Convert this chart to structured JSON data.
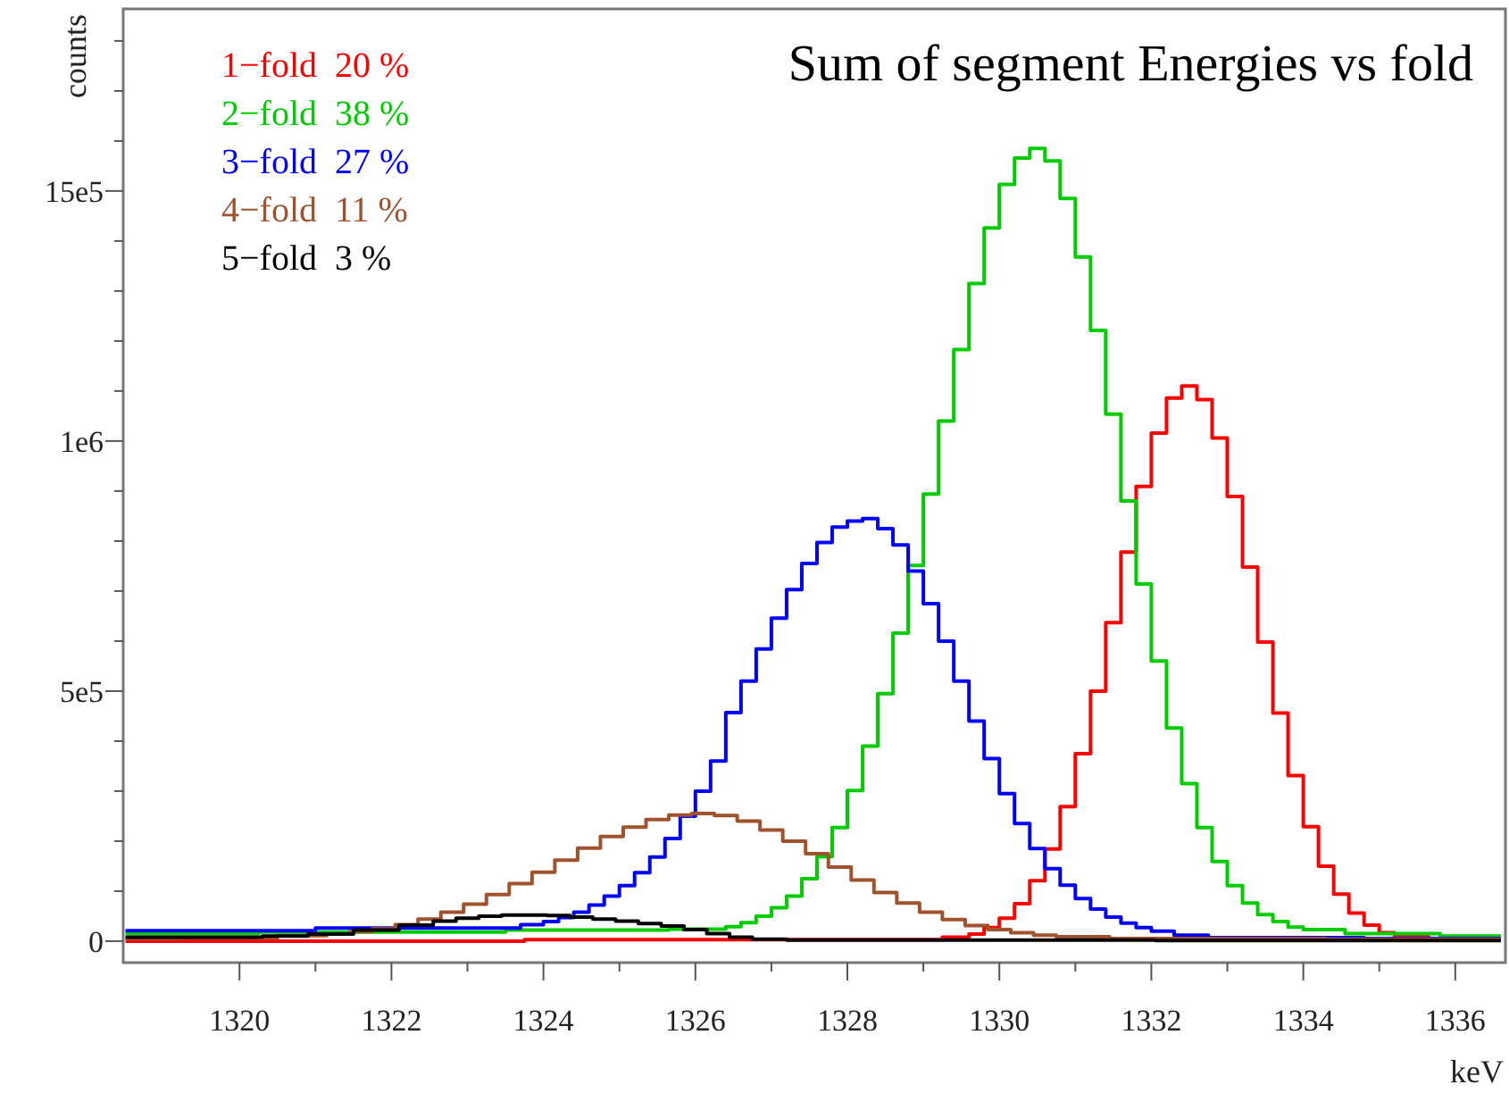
{
  "chart_data": {
    "type": "step",
    "title": "Sum of segment Energies vs fold",
    "xlabel": "keV",
    "ylabel": "counts",
    "xlim": [
      1318.47,
      1336.66
    ],
    "ylim": [
      -43000,
      1864000
    ],
    "xticks": [
      1320,
      {
        "value": 1321,
        "label": null
      },
      1322,
      {
        "value": 1323,
        "label": null
      },
      1324,
      {
        "value": 1325,
        "label": null
      },
      1326,
      {
        "value": 1327,
        "label": null
      },
      1328,
      {
        "value": 1329,
        "label": null
      },
      1330,
      {
        "value": 1331,
        "label": null
      },
      1332,
      {
        "value": 1333,
        "label": null
      },
      1334,
      {
        "value": 1335,
        "label": null
      },
      1336
    ],
    "yticks": [
      0,
      {
        "value": 100000,
        "label": null
      },
      {
        "value": 200000,
        "label": null
      },
      {
        "value": 300000,
        "label": null
      },
      {
        "value": 400000,
        "label": null
      },
      {
        "value": 500000,
        "label": "5e5"
      },
      {
        "value": 600000,
        "label": null
      },
      {
        "value": 700000,
        "label": null
      },
      {
        "value": 800000,
        "label": null
      },
      {
        "value": 900000,
        "label": null
      },
      {
        "value": 1000000,
        "label": "1e6"
      },
      {
        "value": 1100000,
        "label": null
      },
      {
        "value": 1200000,
        "label": null
      },
      {
        "value": 1300000,
        "label": null
      },
      {
        "value": 1400000,
        "label": null
      },
      {
        "value": 1500000,
        "label": "15e5"
      },
      {
        "value": 1600000,
        "label": null
      },
      {
        "value": 1700000,
        "label": null
      },
      {
        "value": 1800000,
        "label": null
      }
    ],
    "grid": false,
    "legend": "top left",
    "marker": "none",
    "line_style": "solid",
    "series": [
      {
        "name": "1−fold  20 %",
        "color": "#ff0000",
        "x": [
          1318.5,
          1329,
          1329.5,
          1329.7,
          1329.9,
          1330.1,
          1330.3,
          1330.5,
          1330.7,
          1330.9,
          1331.1,
          1331.3,
          1331.5,
          1331.7,
          1331.9,
          1332.1,
          1332.3,
          1332.5,
          1332.7,
          1332.9,
          1333.1,
          1333.3,
          1333.5,
          1333.7,
          1333.9,
          1334.1,
          1334.3,
          1334.5,
          1334.7,
          1334.9,
          1335.1,
          1335.3,
          1336,
          1336.6
        ],
        "values": [
          0,
          3000,
          8000,
          14000,
          27000,
          46000,
          75000,
          121000,
          184000,
          269000,
          375000,
          500000,
          637000,
          778000,
          909000,
          1016000,
          1086000,
          1110000,
          1083000,
          1006000,
          889000,
          748000,
          598000,
          456000,
          331000,
          229000,
          150000,
          94000,
          56000,
          32000,
          17000,
          9000,
          3000,
          3000
        ]
      },
      {
        "name": "2−fold  38 %",
        "color": "#00cc00",
        "x": [
          1318.5,
          1322,
          1325,
          1326.3,
          1326.5,
          1326.7,
          1326.9,
          1327.1,
          1327.3,
          1327.5,
          1327.7,
          1327.9,
          1328.1,
          1328.3,
          1328.5,
          1328.7,
          1328.9,
          1329.1,
          1329.3,
          1329.5,
          1329.7,
          1329.9,
          1330.1,
          1330.3,
          1330.5,
          1330.7,
          1330.9,
          1331.1,
          1331.3,
          1331.5,
          1331.7,
          1331.9,
          1332.1,
          1332.3,
          1332.5,
          1332.7,
          1332.9,
          1333.1,
          1333.3,
          1333.5,
          1333.7,
          1333.9,
          1334.1,
          1335,
          1336.6
        ],
        "values": [
          15000,
          18000,
          22000,
          24000,
          29000,
          37000,
          50000,
          67000,
          90000,
          125000,
          169000,
          227000,
          301000,
          390000,
          495000,
          616000,
          751000,
          894000,
          1040000,
          1183000,
          1315000,
          1426000,
          1513000,
          1566000,
          1585000,
          1560000,
          1485000,
          1368000,
          1221000,
          1054000,
          880000,
          714000,
          560000,
          426000,
          315000,
          227000,
          159000,
          111000,
          76000,
          53000,
          39000,
          28000,
          23000,
          15000,
          10000
        ]
      },
      {
        "name": "3−fold  27 %",
        "color": "#0000ff",
        "x": [
          1318.5,
          1323.5,
          1323.9,
          1324.1,
          1324.3,
          1324.5,
          1324.7,
          1324.9,
          1325.1,
          1325.3,
          1325.5,
          1325.7,
          1325.9,
          1326.1,
          1326.3,
          1326.5,
          1326.7,
          1326.9,
          1327.1,
          1327.3,
          1327.5,
          1327.7,
          1327.9,
          1328.1,
          1328.3,
          1328.5,
          1328.7,
          1328.9,
          1329.1,
          1329.3,
          1329.5,
          1329.7,
          1329.9,
          1330.1,
          1330.3,
          1330.5,
          1330.7,
          1330.9,
          1331.1,
          1331.3,
          1331.5,
          1331.7,
          1331.9,
          1332.1,
          1332.5,
          1333,
          1336.6
        ],
        "values": [
          21000,
          26000,
          33000,
          39000,
          47000,
          58000,
          72000,
          90000,
          111000,
          137000,
          168000,
          205000,
          250000,
          300000,
          360000,
          457000,
          520000,
          584000,
          646000,
          703000,
          755000,
          797000,
          828000,
          840000,
          845000,
          825000,
          792000,
          740000,
          675000,
          600000,
          520000,
          440000,
          365000,
          295000,
          235000,
          185000,
          145000,
          112000,
          85000,
          64000,
          48000,
          36000,
          27000,
          20000,
          12000,
          7000,
          5000
        ]
      },
      {
        "name": "4−fold  11 %",
        "color": "#a0522d",
        "x": [
          1318.5,
          1320,
          1321,
          1321.3,
          1321.6,
          1321.9,
          1322.2,
          1322.5,
          1322.8,
          1323.1,
          1323.4,
          1323.7,
          1324,
          1324.3,
          1324.6,
          1324.9,
          1325.2,
          1325.5,
          1325.8,
          1326.1,
          1326.4,
          1326.7,
          1327,
          1327.3,
          1327.6,
          1327.9,
          1328.2,
          1328.5,
          1328.8,
          1329.1,
          1329.4,
          1329.7,
          1330,
          1330.3,
          1330.6,
          1330.9,
          1332,
          1336.6
        ],
        "values": [
          5000,
          6000,
          11000,
          14000,
          19000,
          25000,
          33000,
          44000,
          58000,
          74000,
          93000,
          115000,
          138000,
          162000,
          186000,
          209000,
          228000,
          243000,
          252000,
          255000,
          251000,
          240000,
          222000,
          200000,
          175000,
          148000,
          122000,
          97000,
          76000,
          58000,
          43000,
          31000,
          23000,
          17000,
          12000,
          9000,
          5000,
          4000
        ]
      },
      {
        "name": "5−fold  3 %",
        "color": "#000000",
        "x": [
          1318.5,
          1320,
          1320.6,
          1321.2,
          1321.8,
          1322.4,
          1322.7,
          1323,
          1323.3,
          1323.6,
          1323.9,
          1324.2,
          1324.5,
          1324.8,
          1325.1,
          1325.4,
          1325.7,
          1326,
          1326.3,
          1326.6,
          1326.9,
          1327.5,
          1336.6
        ],
        "values": [
          8000,
          8000,
          10000,
          14000,
          22000,
          32000,
          40000,
          46000,
          50000,
          52000,
          52000,
          51000,
          48000,
          44000,
          40000,
          35000,
          30000,
          23000,
          15000,
          8000,
          4000,
          2000,
          1000
        ]
      }
    ]
  }
}
